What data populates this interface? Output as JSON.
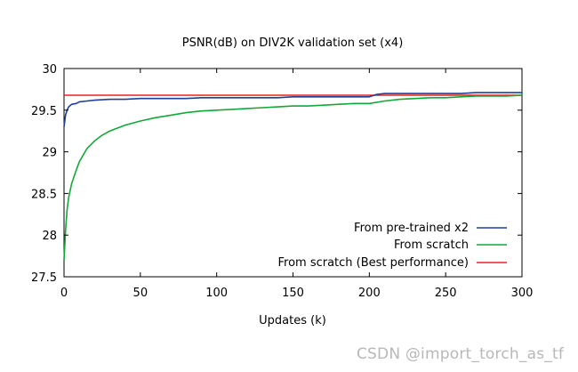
{
  "chart_data": {
    "type": "line",
    "title": "PSNR(dB) on DIV2K validation set (x4)",
    "xlabel": "Updates (k)",
    "ylabel": "",
    "xlim": [
      0,
      300
    ],
    "ylim": [
      27.5,
      30
    ],
    "x_ticks": [
      0,
      50,
      100,
      150,
      200,
      250,
      300
    ],
    "y_ticks": [
      27.5,
      28,
      28.5,
      29,
      29.5,
      30
    ],
    "y_tick_labels": [
      "27.5",
      "28",
      "28.5",
      "29",
      "29.5",
      "30"
    ],
    "grid": false,
    "legend_position": "bottom-right",
    "series": [
      {
        "name": "From pre-trained x2",
        "color": "#1f3f9a",
        "x": [
          0,
          1,
          2,
          3,
          5,
          8,
          10,
          15,
          20,
          30,
          40,
          50,
          60,
          70,
          80,
          90,
          100,
          110,
          120,
          130,
          140,
          150,
          160,
          170,
          180,
          190,
          200,
          205,
          210,
          220,
          230,
          240,
          250,
          260,
          270,
          280,
          290,
          300
        ],
        "y": [
          29.3,
          29.44,
          29.5,
          29.54,
          29.57,
          29.58,
          29.6,
          29.61,
          29.62,
          29.63,
          29.63,
          29.64,
          29.64,
          29.64,
          29.64,
          29.65,
          29.65,
          29.65,
          29.65,
          29.65,
          29.65,
          29.66,
          29.66,
          29.66,
          29.66,
          29.66,
          29.66,
          29.69,
          29.7,
          29.7,
          29.7,
          29.7,
          29.7,
          29.7,
          29.71,
          29.71,
          29.71,
          29.71
        ]
      },
      {
        "name": "From scratch",
        "color": "#13a83a",
        "x": [
          0,
          1,
          2,
          3,
          5,
          8,
          10,
          15,
          20,
          25,
          30,
          40,
          50,
          60,
          70,
          80,
          90,
          100,
          110,
          120,
          130,
          140,
          150,
          160,
          170,
          180,
          190,
          200,
          210,
          220,
          230,
          240,
          250,
          260,
          270,
          280,
          290,
          300
        ],
        "y": [
          27.7,
          28.05,
          28.3,
          28.45,
          28.62,
          28.78,
          28.88,
          29.04,
          29.13,
          29.2,
          29.25,
          29.32,
          29.37,
          29.41,
          29.44,
          29.47,
          29.49,
          29.5,
          29.51,
          29.52,
          29.53,
          29.54,
          29.55,
          29.55,
          29.56,
          29.57,
          29.58,
          29.58,
          29.61,
          29.63,
          29.64,
          29.65,
          29.65,
          29.66,
          29.67,
          29.67,
          29.67,
          29.68
        ]
      },
      {
        "name": "From scratch (Best performance)",
        "color": "#e8231b",
        "x": [
          0,
          300
        ],
        "y": [
          29.68,
          29.68
        ]
      }
    ]
  },
  "watermark": "CSDN @import_torch_as_tf"
}
